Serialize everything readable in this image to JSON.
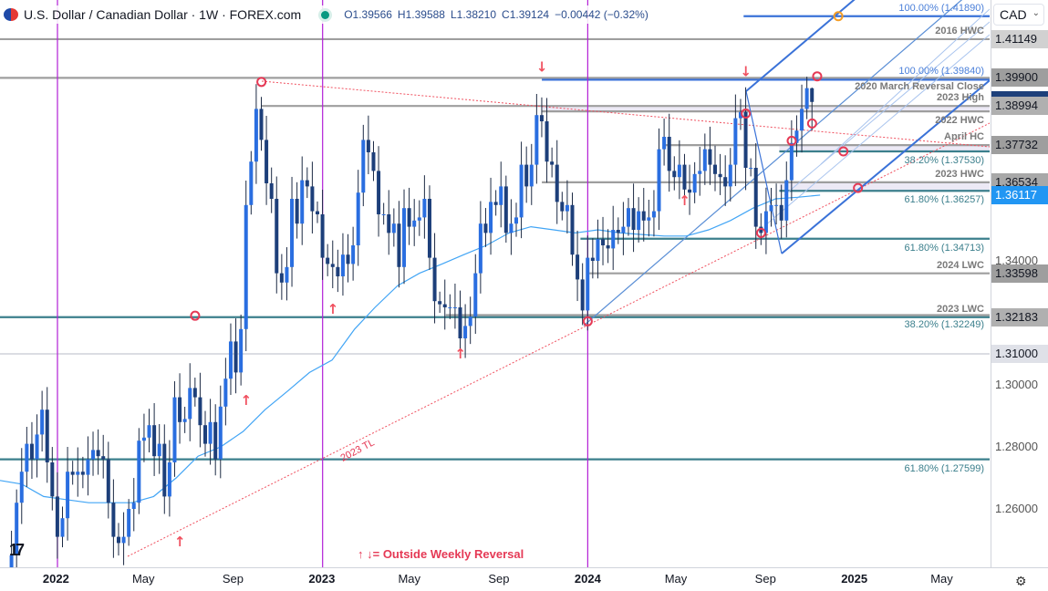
{
  "header": {
    "symbol_title": "U.S. Dollar / Canadian Dollar · 1W · FOREX.com",
    "open": "O1.39566",
    "high": "H1.39588",
    "low": "L1.38210",
    "close": "C1.39124",
    "change": "−0.00442 (−0.32%)",
    "market_status_color": "#089981"
  },
  "currency_selector": {
    "value": "CAD"
  },
  "legend_note": "↑ ↓= Outside Weekly Reversal",
  "trendline_label": "2023 TL",
  "colors": {
    "bull": "#2a6ee0",
    "bear": "#1d3f7a",
    "ma": "#42a5f5",
    "vertical": "#b21fd6",
    "trend": "#f0505f",
    "pitchfork": "#3a72d8",
    "fib": "#3b7f8c",
    "hline": "#9e9e9e"
  },
  "chart_data": {
    "type": "candlestick",
    "interval": "1W",
    "ylim": [
      1.2435,
      1.4265
    ],
    "y_ticks": [
      "1.26000",
      "1.28000",
      "1.30000",
      "1.34000"
    ],
    "x_ticks": [
      {
        "date": "2022-01-01",
        "label": "2022",
        "year": true
      },
      {
        "date": "2022-05-01",
        "label": "May"
      },
      {
        "date": "2022-09-01",
        "label": "Sep"
      },
      {
        "date": "2023-01-01",
        "label": "2023",
        "year": true
      },
      {
        "date": "2023-05-01",
        "label": "May"
      },
      {
        "date": "2023-09-01",
        "label": "Sep"
      },
      {
        "date": "2024-01-01",
        "label": "2024",
        "year": true
      },
      {
        "date": "2024-05-01",
        "label": "May"
      },
      {
        "date": "2024-09-01",
        "label": "Sep"
      },
      {
        "date": "2025-01-01",
        "label": "2025",
        "year": true
      },
      {
        "date": "2025-05-01",
        "label": "May"
      }
    ],
    "weekly_closes_by_month": {
      "2021-10": [
        1.238
      ],
      "2021-11": [
        1.245,
        1.262,
        1.272,
        1.281
      ],
      "2021-12": [
        1.276,
        1.284,
        1.292,
        1.275,
        1.264
      ],
      "2022-01": [
        1.251,
        1.257,
        1.272,
        1.271
      ],
      "2022-02": [
        1.272,
        1.271,
        1.276,
        1.279
      ],
      "2022-03": [
        1.277,
        1.276,
        1.262,
        1.251,
        1.249
      ],
      "2022-04": [
        1.251,
        1.26,
        1.262,
        1.282
      ],
      "2022-05": [
        1.283,
        1.287,
        1.277,
        1.281
      ],
      "2022-06": [
        1.264,
        1.275,
        1.296,
        1.288,
        1.289
      ],
      "2022-07": [
        1.299,
        1.296,
        1.287,
        1.281
      ],
      "2022-08": [
        1.288,
        1.276,
        1.293,
        1.302
      ],
      "2022-09": [
        1.314,
        1.304,
        1.318,
        1.358,
        1.372
      ],
      "2022-10": [
        1.389,
        1.379,
        1.365,
        1.36
      ],
      "2022-11": [
        1.336,
        1.333,
        1.338,
        1.36
      ],
      "2022-12": [
        1.352,
        1.366,
        1.364,
        1.356,
        1.355
      ],
      "2023-01": [
        1.341,
        1.339,
        1.338,
        1.335
      ],
      "2023-02": [
        1.342,
        1.339,
        1.345,
        1.362
      ],
      "2023-03": [
        1.379,
        1.375,
        1.369,
        1.355,
        1.355
      ],
      "2023-04": [
        1.349,
        1.352,
        1.338,
        1.357
      ],
      "2023-05": [
        1.351,
        1.353,
        1.354,
        1.36
      ],
      "2023-06": [
        1.341,
        1.327,
        1.326,
        1.325,
        1.325
      ],
      "2023-07": [
        1.325,
        1.315,
        1.319,
        1.322
      ],
      "2023-08": [
        1.336,
        1.352,
        1.349,
        1.359
      ],
      "2023-09": [
        1.358,
        1.364,
        1.349,
        1.352,
        1.354
      ],
      "2023-10": [
        1.371,
        1.364,
        1.371,
        1.387
      ],
      "2023-11": [
        1.385,
        1.372,
        1.371,
        1.359
      ],
      "2023-12": [
        1.356,
        1.358,
        1.342,
        1.334,
        1.324
      ],
      "2024-01": [
        1.341,
        1.34,
        1.347,
        1.345
      ],
      "2024-02": [
        1.344,
        1.35,
        1.349,
        1.351
      ],
      "2024-03": [
        1.357,
        1.35,
        1.356,
        1.353,
        1.354
      ],
      "2024-04": [
        1.356,
        1.376,
        1.38,
        1.369
      ],
      "2024-05": [
        1.367,
        1.371,
        1.363,
        1.362
      ],
      "2024-06": [
        1.368,
        1.369,
        1.376,
        1.371,
        1.368
      ],
      "2024-07": [
        1.367,
        1.364,
        1.371,
        1.386
      ],
      "2024-08": [
        1.388,
        1.37,
        1.37,
        1.351
      ],
      "2024-09": [
        1.349,
        1.356,
        1.358,
        1.358,
        1.353
      ],
      "2024-10": [
        1.366,
        1.378,
        1.382,
        1.389
      ],
      "2024-11": [
        1.3957,
        1.39124
      ]
    },
    "moving_average_by_month": {
      "2021-11": 1.268,
      "2021-12": 1.264,
      "2022-01": 1.263,
      "2022-02": 1.262,
      "2022-03": 1.262,
      "2022-04": 1.262,
      "2022-05": 1.264,
      "2022-06": 1.27,
      "2022-07": 1.277,
      "2022-08": 1.28,
      "2022-09": 1.285,
      "2022-10": 1.292,
      "2022-11": 1.298,
      "2022-12": 1.304,
      "2023-01": 1.308,
      "2023-02": 1.318,
      "2023-03": 1.325,
      "2023-04": 1.332,
      "2023-05": 1.336,
      "2023-06": 1.339,
      "2023-07": 1.342,
      "2023-08": 1.345,
      "2023-09": 1.349,
      "2023-10": 1.351,
      "2023-11": 1.35,
      "2023-12": 1.349,
      "2024-01": 1.35,
      "2024-02": 1.349,
      "2024-03": 1.3485,
      "2024-04": 1.348,
      "2024-05": 1.348,
      "2024-06": 1.35,
      "2024-07": 1.353,
      "2024-08": 1.357,
      "2024-09": 1.36,
      "2024-10": 1.3605,
      "2024-11": 1.3612
    },
    "levels": [
      {
        "price": 1.4189,
        "kind": "pitch",
        "start": "2024-08-02",
        "label": "100.00% (1.41890)",
        "pos": "above"
      },
      {
        "price": 1.41149,
        "kind": "gray",
        "label": "2016 HWC",
        "pos": "above"
      },
      {
        "price": 1.399,
        "kind": "gray",
        "label": "2020 March Reversal Close",
        "pos": "below"
      },
      {
        "price": 1.3984,
        "kind": "pitch",
        "start": "2023-10-30",
        "label": "100.00% (1.39840)",
        "pos": "above"
      },
      {
        "price": 1.38994,
        "kind": "gray",
        "start": "2022-10-10",
        "label": "2023 High",
        "pos": "above"
      },
      {
        "price": 1.3882,
        "kind": "gray",
        "start": "2023-10-30",
        "label": "2022 HWC",
        "pos": "below"
      },
      {
        "price": 1.37732,
        "kind": "gray",
        "start": "2024-04-15",
        "label": "April HC",
        "pos": "above"
      },
      {
        "price": 1.3753,
        "kind": "fib",
        "start": "2024-09-20",
        "label": "38.20% (1.37530)",
        "pos": "below"
      },
      {
        "price": 1.36534,
        "kind": "gray",
        "start": "2023-10-30",
        "label": "2023 HWC",
        "pos": "above"
      },
      {
        "price": 1.36257,
        "kind": "fib",
        "start": "2024-09-20",
        "label": "61.80% (1.36257)",
        "pos": "below"
      },
      {
        "price": 1.34713,
        "kind": "fib",
        "start": "2023-12-22",
        "label": "61.80% (1.34713)",
        "pos": "below"
      },
      {
        "price": 1.33598,
        "kind": "gray",
        "start": "2024-01-01",
        "label": "2024 LWC",
        "pos": "above"
      },
      {
        "price": 1.32183,
        "kind": "fib",
        "label": "2023 LWC",
        "pos": "above"
      },
      {
        "price": 1.32249,
        "kind": "gray",
        "start": "2023-06-20",
        "label": "38.20% (1.32249)",
        "pos": "below"
      },
      {
        "price": 1.31,
        "kind": "light",
        "label": "",
        "pos": "none"
      },
      {
        "price": 1.27599,
        "kind": "fib",
        "label": "61.80% (1.27599)",
        "pos": "below"
      }
    ],
    "axis_price_labels": [
      {
        "text": "1.41149",
        "price": 1.41149,
        "bg": "#d1d1d1",
        "fg": "#131722"
      },
      {
        "text": "1.39900",
        "price": 1.399,
        "bg": "#9e9e9e",
        "fg": "#131722"
      },
      {
        "text": "1.38994",
        "price": 1.38994,
        "bg": "#b0b0b0",
        "fg": "#131722"
      },
      {
        "text": "1.37732",
        "price": 1.37732,
        "bg": "#9e9e9e",
        "fg": "#131722"
      },
      {
        "text": "1.36534",
        "price": 1.36534,
        "bg": "#a8a8a8",
        "fg": "#131722"
      },
      {
        "text": "1.36117",
        "price": 1.36117,
        "bg": "#2196f3",
        "fg": "#ffffff"
      },
      {
        "text": "1.33598",
        "price": 1.33598,
        "bg": "#9e9e9e",
        "fg": "#131722"
      },
      {
        "text": "1.32183",
        "price": 1.32183,
        "bg": "#b0b0b0",
        "fg": "#131722"
      },
      {
        "text": "1.31000",
        "price": 1.31,
        "bg": "#dfe1e8",
        "fg": "#131722"
      }
    ],
    "reversal_markers": [
      {
        "date": "2022-06-20",
        "price": 1.248,
        "dir": "up"
      },
      {
        "date": "2022-09-19",
        "price": 1.2935,
        "dir": "up"
      },
      {
        "date": "2023-01-16",
        "price": 1.323,
        "dir": "up"
      },
      {
        "date": "2023-07-10",
        "price": 1.3085,
        "dir": "up"
      },
      {
        "date": "2024-05-13",
        "price": 1.358,
        "dir": "up"
      },
      {
        "date": "2023-10-30",
        "price": 1.401,
        "dir": "down"
      },
      {
        "date": "2024-08-05",
        "price": 1.3995,
        "dir": "down"
      }
    ],
    "circles": [
      {
        "date": "2022-10-10",
        "price": 1.3977
      },
      {
        "date": "2022-07-11",
        "price": 1.3223
      },
      {
        "date": "2024-01-01",
        "price": 1.3205
      },
      {
        "date": "2024-08-05",
        "price": 1.3875
      },
      {
        "date": "2024-08-26",
        "price": 1.349
      },
      {
        "date": "2024-10-07",
        "price": 1.3787
      },
      {
        "date": "2024-11-04",
        "price": 1.3843
      },
      {
        "date": "2024-11-11",
        "price": 1.3995
      },
      {
        "date": "2024-12-17",
        "price": 1.3753
      },
      {
        "date": "2025-01-06",
        "price": 1.3635
      },
      {
        "date": "2024-12-10",
        "price": 1.4189,
        "orange": true
      }
    ]
  }
}
